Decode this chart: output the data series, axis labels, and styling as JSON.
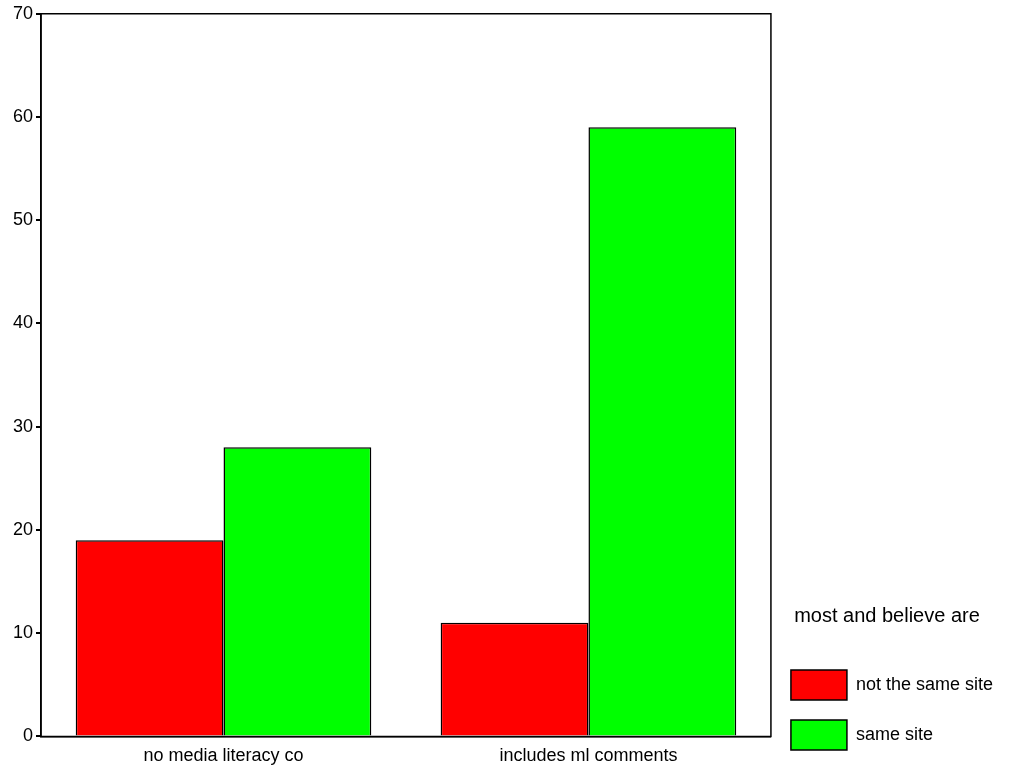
{
  "chart_data": {
    "type": "bar",
    "categories": [
      "no media literacy co",
      "includes ml comments"
    ],
    "legend_title": "most and believe are",
    "legend": "right",
    "series": [
      {
        "name": "not the same site",
        "color": "#ff0000",
        "values": [
          19,
          11
        ]
      },
      {
        "name": "same site",
        "color": "#00ff00",
        "values": [
          28,
          59
        ]
      }
    ],
    "ylim": [
      0,
      70
    ],
    "yticks": [
      0,
      10,
      20,
      30,
      40,
      50,
      60,
      70
    ],
    "grid": false
  }
}
